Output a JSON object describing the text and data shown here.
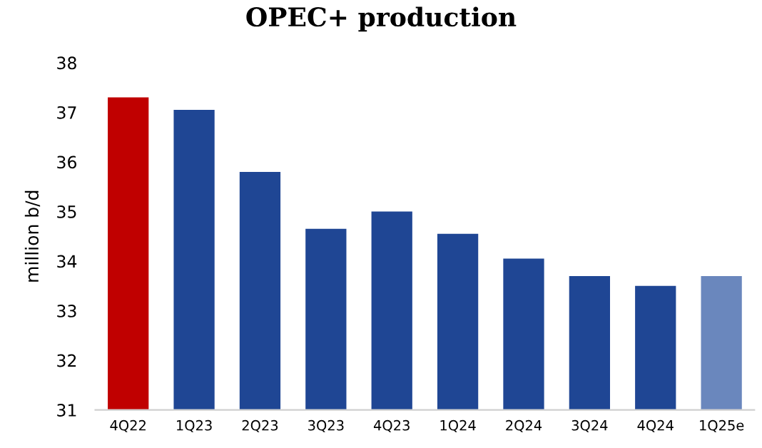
{
  "chart_data": {
    "type": "bar",
    "title": "OPEC+ production",
    "ylabel": "million b/d",
    "categories": [
      "4Q22",
      "1Q23",
      "2Q23",
      "3Q23",
      "4Q23",
      "1Q24",
      "2Q24",
      "3Q24",
      "4Q24",
      "1Q25e"
    ],
    "values": [
      37.3,
      37.05,
      35.8,
      34.65,
      35.0,
      34.55,
      34.05,
      33.7,
      33.5,
      33.7
    ],
    "colors": [
      "#c00000",
      "#1f4694",
      "#1f4694",
      "#1f4694",
      "#1f4694",
      "#1f4694",
      "#1f4694",
      "#1f4694",
      "#1f4694",
      "#6a87bd"
    ],
    "ylim": [
      31,
      38
    ],
    "yticks": [
      31,
      32,
      33,
      34,
      35,
      36,
      37,
      38
    ],
    "grid": false
  }
}
